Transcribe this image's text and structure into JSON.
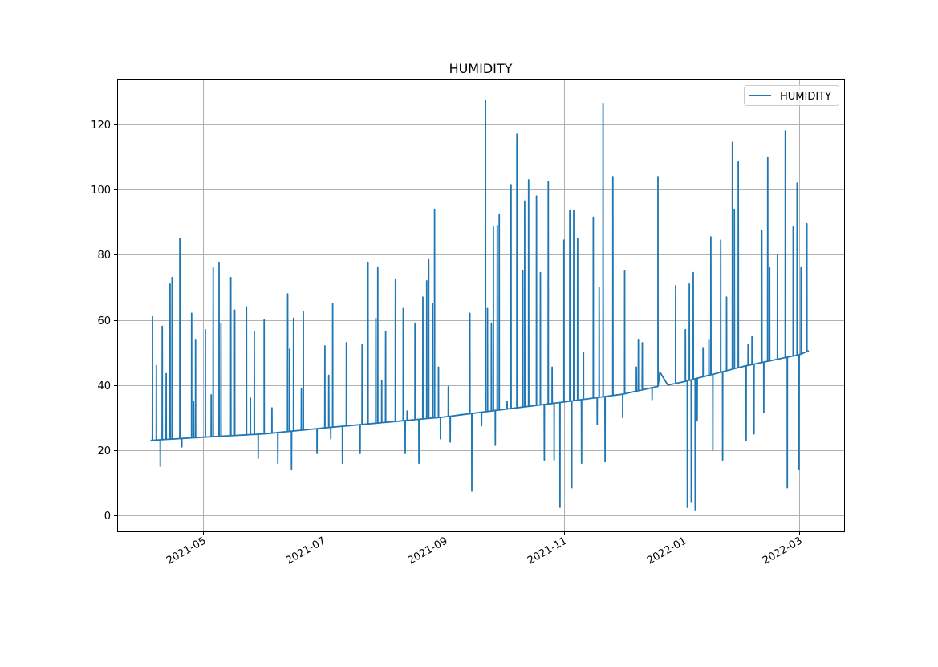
{
  "chart_data": {
    "type": "line",
    "title": "HUMIDITY",
    "xlabel": "",
    "ylabel": "",
    "xlim": [
      "2021-03-18",
      "2022-03-24"
    ],
    "ylim": [
      -4.9,
      133.8
    ],
    "grid": true,
    "legend": {
      "position": "top-right",
      "entries": [
        "HUMIDITY"
      ]
    },
    "x_ticks": [
      "2021-05",
      "2021-07",
      "2021-09",
      "2021-11",
      "2022-01",
      "2022-03"
    ],
    "y_ticks": [
      0,
      20,
      40,
      60,
      80,
      100,
      120
    ],
    "colors": {
      "series": "#1f77b4",
      "grid": "#b0b0b0"
    },
    "series": [
      {
        "name": "HUMIDITY",
        "baseline": [
          [
            "2021-04-04",
            23
          ],
          [
            "2021-05-01",
            24
          ],
          [
            "2021-06-01",
            25
          ],
          [
            "2021-07-01",
            26.8
          ],
          [
            "2021-08-01",
            28.5
          ],
          [
            "2021-09-01",
            30.2
          ],
          [
            "2021-10-01",
            32.5
          ],
          [
            "2021-11-01",
            34.8
          ],
          [
            "2021-12-01",
            37.2
          ],
          [
            "2021-12-19",
            39.6
          ],
          [
            "2021-12-20",
            44
          ],
          [
            "2021-12-24",
            40
          ],
          [
            "2022-01-01",
            41
          ],
          [
            "2022-02-01",
            45.8
          ],
          [
            "2022-03-01",
            49.3
          ],
          [
            "2022-03-06",
            50.5
          ]
        ],
        "spikes": [
          [
            "2021-04-05",
            61
          ],
          [
            "2021-04-07",
            46
          ],
          [
            "2021-04-09",
            15
          ],
          [
            "2021-04-10",
            58
          ],
          [
            "2021-04-12",
            43.5
          ],
          [
            "2021-04-14",
            71
          ],
          [
            "2021-04-15",
            73
          ],
          [
            "2021-04-19",
            85
          ],
          [
            "2021-04-20",
            21
          ],
          [
            "2021-04-25",
            62
          ],
          [
            "2021-04-26",
            35
          ],
          [
            "2021-04-27",
            54
          ],
          [
            "2021-05-02",
            57
          ],
          [
            "2021-05-05",
            37
          ],
          [
            "2021-05-06",
            76
          ],
          [
            "2021-05-09",
            77.5
          ],
          [
            "2021-05-10",
            59
          ],
          [
            "2021-05-15",
            73
          ],
          [
            "2021-05-17",
            63
          ],
          [
            "2021-05-23",
            64
          ],
          [
            "2021-05-25",
            36
          ],
          [
            "2021-05-27",
            56.5
          ],
          [
            "2021-05-29",
            17.5
          ],
          [
            "2021-06-01",
            60
          ],
          [
            "2021-06-05",
            33
          ],
          [
            "2021-06-08",
            16
          ],
          [
            "2021-06-13",
            68
          ],
          [
            "2021-06-14",
            51
          ],
          [
            "2021-06-15",
            14
          ],
          [
            "2021-06-16",
            60.5
          ],
          [
            "2021-06-20",
            39
          ],
          [
            "2021-06-21",
            62.5
          ],
          [
            "2021-06-28",
            19
          ],
          [
            "2021-07-02",
            52
          ],
          [
            "2021-07-04",
            43
          ],
          [
            "2021-07-05",
            23.5
          ],
          [
            "2021-07-06",
            65
          ],
          [
            "2021-07-11",
            16
          ],
          [
            "2021-07-13",
            53
          ],
          [
            "2021-07-20",
            19
          ],
          [
            "2021-07-21",
            52.5
          ],
          [
            "2021-07-24",
            77.5
          ],
          [
            "2021-07-28",
            60.5
          ],
          [
            "2021-07-29",
            76
          ],
          [
            "2021-07-31",
            41.5
          ],
          [
            "2021-08-02",
            56.5
          ],
          [
            "2021-08-07",
            72.5
          ],
          [
            "2021-08-11",
            63.5
          ],
          [
            "2021-08-12",
            19
          ],
          [
            "2021-08-13",
            32
          ],
          [
            "2021-08-17",
            59
          ],
          [
            "2021-08-19",
            16
          ],
          [
            "2021-08-21",
            67
          ],
          [
            "2021-08-23",
            72
          ],
          [
            "2021-08-24",
            78.5
          ],
          [
            "2021-08-26",
            65
          ],
          [
            "2021-08-27",
            94
          ],
          [
            "2021-08-29",
            45.5
          ],
          [
            "2021-08-30",
            23.5
          ],
          [
            "2021-09-03",
            39.5
          ],
          [
            "2021-09-04",
            22.5
          ],
          [
            "2021-09-10",
            31
          ],
          [
            "2021-09-14",
            62
          ],
          [
            "2021-09-15",
            7.5
          ],
          [
            "2021-09-20",
            27.5
          ],
          [
            "2021-09-22",
            127.5
          ],
          [
            "2021-09-23",
            63.5
          ],
          [
            "2021-09-25",
            59
          ],
          [
            "2021-09-26",
            88.5
          ],
          [
            "2021-09-27",
            21.5
          ],
          [
            "2021-09-28",
            89
          ],
          [
            "2021-09-29",
            92.5
          ],
          [
            "2021-10-03",
            35
          ],
          [
            "2021-10-05",
            101.5
          ],
          [
            "2021-10-08",
            117
          ],
          [
            "2021-10-11",
            75
          ],
          [
            "2021-10-12",
            96.5
          ],
          [
            "2021-10-14",
            103
          ],
          [
            "2021-10-18",
            98
          ],
          [
            "2021-10-20",
            74.5
          ],
          [
            "2021-10-22",
            17
          ],
          [
            "2021-10-24",
            102.5
          ],
          [
            "2021-10-26",
            45.5
          ],
          [
            "2021-10-27",
            17
          ],
          [
            "2021-10-30",
            2.5
          ],
          [
            "2021-11-01",
            84.5
          ],
          [
            "2021-11-04",
            93.5
          ],
          [
            "2021-11-05",
            8.5
          ],
          [
            "2021-11-06",
            93.5
          ],
          [
            "2021-11-08",
            85
          ],
          [
            "2021-11-10",
            16
          ],
          [
            "2021-11-11",
            50
          ],
          [
            "2021-11-16",
            91.5
          ],
          [
            "2021-11-18",
            28
          ],
          [
            "2021-11-19",
            70
          ],
          [
            "2021-11-21",
            126.5
          ],
          [
            "2021-11-22",
            16.5
          ],
          [
            "2021-11-26",
            104
          ],
          [
            "2021-12-01",
            30
          ],
          [
            "2021-12-02",
            75
          ],
          [
            "2021-12-08",
            45.5
          ],
          [
            "2021-12-09",
            54
          ],
          [
            "2021-12-11",
            53
          ],
          [
            "2021-12-16",
            35.5
          ],
          [
            "2021-12-19",
            104
          ],
          [
            "2021-12-28",
            70.5
          ],
          [
            "2022-01-02",
            57
          ],
          [
            "2022-01-03",
            2.5
          ],
          [
            "2022-01-04",
            71
          ],
          [
            "2022-01-05",
            4
          ],
          [
            "2022-01-06",
            74.5
          ],
          [
            "2022-01-07",
            1.5
          ],
          [
            "2022-01-08",
            29
          ],
          [
            "2022-01-11",
            51.5
          ],
          [
            "2022-01-14",
            54
          ],
          [
            "2022-01-15",
            85.5
          ],
          [
            "2022-01-16",
            20
          ],
          [
            "2022-01-20",
            84.5
          ],
          [
            "2022-01-21",
            17
          ],
          [
            "2022-01-23",
            67
          ],
          [
            "2022-01-26",
            114.5
          ],
          [
            "2022-01-27",
            94
          ],
          [
            "2022-01-29",
            108.5
          ],
          [
            "2022-02-02",
            23
          ],
          [
            "2022-02-03",
            52.5
          ],
          [
            "2022-02-05",
            55
          ],
          [
            "2022-02-06",
            25
          ],
          [
            "2022-02-10",
            87.5
          ],
          [
            "2022-02-11",
            31.5
          ],
          [
            "2022-02-13",
            110
          ],
          [
            "2022-02-14",
            76
          ],
          [
            "2022-02-18",
            80
          ],
          [
            "2022-02-22",
            118
          ],
          [
            "2022-02-23",
            8.5
          ],
          [
            "2022-02-26",
            88.5
          ],
          [
            "2022-02-28",
            102
          ],
          [
            "2022-03-01",
            14
          ],
          [
            "2022-03-02",
            76
          ],
          [
            "2022-03-05",
            89.5
          ]
        ]
      }
    ]
  }
}
